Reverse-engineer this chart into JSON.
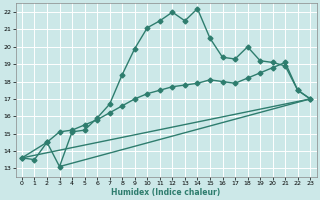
{
  "xlabel": "Humidex (Indice chaleur)",
  "xlim": [
    -0.5,
    23.5
  ],
  "ylim": [
    12.5,
    22.5
  ],
  "xticks": [
    0,
    1,
    2,
    3,
    4,
    5,
    6,
    7,
    8,
    9,
    10,
    11,
    12,
    13,
    14,
    15,
    16,
    17,
    18,
    19,
    20,
    21,
    22,
    23
  ],
  "yticks": [
    13,
    14,
    15,
    16,
    17,
    18,
    19,
    20,
    21,
    22
  ],
  "background_color": "#cce8e8",
  "grid_color": "#ffffff",
  "line_color": "#2e7d6e",
  "line_width": 1.0,
  "marker": "D",
  "marker_size": 2.5,
  "curve1_x": [
    0,
    1,
    2,
    3,
    4,
    5,
    6,
    7,
    8,
    9,
    10,
    11,
    12,
    13,
    14,
    15,
    16,
    17,
    18,
    19,
    20,
    21,
    22,
    23
  ],
  "curve1_y": [
    13.6,
    13.5,
    14.5,
    13.1,
    15.1,
    15.2,
    15.9,
    16.7,
    18.4,
    19.9,
    21.1,
    21.5,
    22.0,
    21.5,
    22.2,
    20.5,
    19.4,
    19.3,
    20.0,
    19.2,
    19.1,
    18.9,
    17.5,
    17.0
  ],
  "curve2_x": [
    0,
    2,
    3,
    4,
    5,
    6,
    7,
    8,
    9,
    10,
    11,
    12,
    13,
    14,
    15,
    16,
    17,
    18,
    19,
    20,
    21,
    22,
    23
  ],
  "curve2_y": [
    13.6,
    14.5,
    15.1,
    15.2,
    15.5,
    15.8,
    16.2,
    16.6,
    17.0,
    17.3,
    17.5,
    17.7,
    17.8,
    17.9,
    18.1,
    18.0,
    17.9,
    18.2,
    18.5,
    18.8,
    19.1,
    17.5,
    17.0
  ],
  "curve3_x": [
    0,
    23
  ],
  "curve3_y": [
    13.6,
    17.0
  ],
  "curve4_x": [
    3,
    23
  ],
  "curve4_y": [
    13.1,
    17.0
  ]
}
